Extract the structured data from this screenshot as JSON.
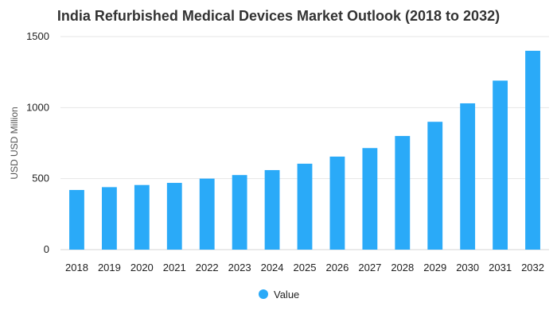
{
  "chart_data": {
    "type": "bar",
    "title": "India Refurbished Medical Devices Market Outlook (2018 to 2032)",
    "xlabel": "",
    "ylabel": "USD USD Million",
    "ylim": [
      0,
      1500
    ],
    "yticks": [
      0,
      500,
      1000,
      1500
    ],
    "grid": true,
    "legend_position": "bottom-center",
    "categories": [
      "2018",
      "2019",
      "2020",
      "2021",
      "2022",
      "2023",
      "2024",
      "2025",
      "2026",
      "2027",
      "2028",
      "2029",
      "2030",
      "2031",
      "2032"
    ],
    "series": [
      {
        "name": "Value",
        "color": "#2aaaf8",
        "values": [
          420,
          440,
          455,
          470,
          500,
          525,
          560,
          605,
          655,
          715,
          800,
          900,
          1030,
          1190,
          1400
        ]
      }
    ]
  }
}
